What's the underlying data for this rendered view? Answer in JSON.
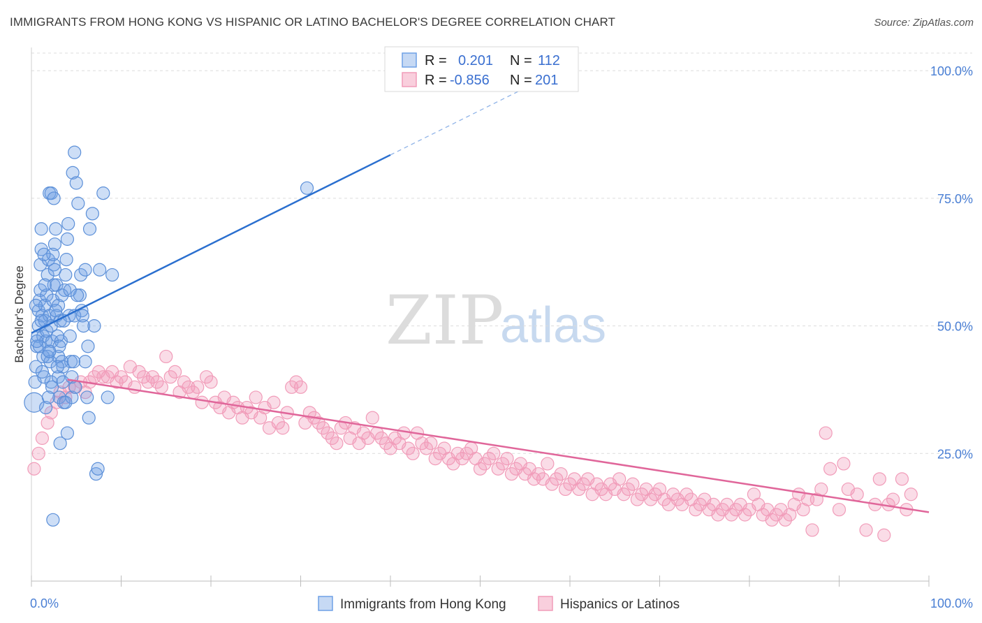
{
  "title": "IMMIGRANTS FROM HONG KONG VS HISPANIC OR LATINO BACHELOR'S DEGREE CORRELATION CHART",
  "source": "Source: ZipAtlas.com",
  "watermark": {
    "zip": "ZIP",
    "atlas": "atlas"
  },
  "colors": {
    "blue": "#6fa1e6",
    "blue_line": "#2a6fcf",
    "pink": "#f19cb9",
    "pink_line": "#e0669a",
    "grid": "#dcdcdc",
    "axis_text": "#4a7fd4"
  },
  "legend": {
    "rows": [
      {
        "r_label": "R =",
        "r_value": "0.201",
        "n_label": "N =",
        "n_value": "112"
      },
      {
        "r_label": "R =",
        "r_value": "-0.856",
        "n_label": "N =",
        "n_value": "201"
      }
    ]
  },
  "bottom_legend": [
    "Immigrants from Hong Kong",
    "Hispanics or Latinos"
  ],
  "chart_data": {
    "type": "scatter",
    "title": "IMMIGRANTS FROM HONG KONG VS HISPANIC OR LATINO BACHELOR'S DEGREE CORRELATION CHART",
    "xlabel": "",
    "ylabel": "Bachelor's Degree",
    "xlim": [
      0,
      100
    ],
    "ylim": [
      0,
      104
    ],
    "x_ticks": [
      "0.0%",
      "100.0%"
    ],
    "y_ticks": [
      {
        "value": 25,
        "label": "25.0%"
      },
      {
        "value": 50,
        "label": "50.0%"
      },
      {
        "value": 75,
        "label": "75.0%"
      },
      {
        "value": 100,
        "label": "100.0%"
      }
    ],
    "grid": true,
    "legend_position": "top-center",
    "series": [
      {
        "name": "Immigrants from Hong Kong",
        "color": "#6fa1e6",
        "trend": {
          "x0": 0,
          "y0": 48.6,
          "x1": 40,
          "y1": 83.5,
          "dash_to_x": 55,
          "dash_to_y": 96.6
        },
        "points": [
          [
            0.3,
            35
          ],
          [
            0.4,
            39
          ],
          [
            0.5,
            42
          ],
          [
            0.6,
            46
          ],
          [
            0.7,
            48
          ],
          [
            0.8,
            50
          ],
          [
            0.8,
            53
          ],
          [
            0.9,
            55
          ],
          [
            1.0,
            57
          ],
          [
            1.0,
            62
          ],
          [
            1.1,
            65
          ],
          [
            1.1,
            69
          ],
          [
            1.2,
            52
          ],
          [
            1.3,
            48
          ],
          [
            1.3,
            44
          ],
          [
            1.4,
            40
          ],
          [
            1.5,
            51
          ],
          [
            1.5,
            54
          ],
          [
            1.6,
            47
          ],
          [
            1.7,
            49
          ],
          [
            1.7,
            56
          ],
          [
            1.8,
            60
          ],
          [
            1.9,
            63
          ],
          [
            2.0,
            52
          ],
          [
            2.0,
            45
          ],
          [
            2.1,
            43
          ],
          [
            2.2,
            39
          ],
          [
            2.2,
            50
          ],
          [
            2.3,
            47
          ],
          [
            2.4,
            55
          ],
          [
            2.5,
            58
          ],
          [
            2.5,
            62
          ],
          [
            2.6,
            66
          ],
          [
            2.7,
            69
          ],
          [
            2.8,
            52
          ],
          [
            2.9,
            48
          ],
          [
            3.0,
            44
          ],
          [
            3.0,
            40
          ],
          [
            3.1,
            36
          ],
          [
            3.2,
            27
          ],
          [
            2.0,
            76
          ],
          [
            2.2,
            76
          ],
          [
            2.4,
            64
          ],
          [
            2.6,
            61
          ],
          [
            2.8,
            58
          ],
          [
            3.0,
            54
          ],
          [
            3.2,
            51
          ],
          [
            3.3,
            47
          ],
          [
            3.4,
            43
          ],
          [
            3.5,
            39
          ],
          [
            3.6,
            35
          ],
          [
            3.7,
            57
          ],
          [
            3.8,
            60
          ],
          [
            3.9,
            63
          ],
          [
            4.0,
            67
          ],
          [
            4.1,
            70
          ],
          [
            4.2,
            52
          ],
          [
            4.3,
            48
          ],
          [
            4.4,
            43
          ],
          [
            4.5,
            40
          ],
          [
            4.6,
            80
          ],
          [
            4.8,
            84
          ],
          [
            5.0,
            78
          ],
          [
            5.2,
            74
          ],
          [
            5.4,
            56
          ],
          [
            5.6,
            53
          ],
          [
            5.8,
            50
          ],
          [
            6.0,
            43
          ],
          [
            6.2,
            36
          ],
          [
            6.4,
            32
          ],
          [
            2.5,
            75
          ],
          [
            4.0,
            29
          ],
          [
            4.5,
            36
          ],
          [
            4.8,
            52
          ],
          [
            3.5,
            42
          ],
          [
            1.8,
            44
          ],
          [
            2.3,
            38
          ],
          [
            3.8,
            35
          ],
          [
            4.9,
            38
          ],
          [
            5.5,
            60
          ],
          [
            6.0,
            61
          ],
          [
            6.5,
            69
          ],
          [
            6.8,
            72
          ],
          [
            7.0,
            50
          ],
          [
            7.2,
            21
          ],
          [
            7.4,
            22
          ],
          [
            7.6,
            61
          ],
          [
            8.0,
            76
          ],
          [
            8.5,
            36
          ],
          [
            9.0,
            60
          ],
          [
            2.4,
            12
          ],
          [
            1.5,
            58
          ],
          [
            0.9,
            46
          ],
          [
            1.2,
            41
          ],
          [
            2.7,
            53
          ],
          [
            3.1,
            46
          ],
          [
            1.6,
            34
          ],
          [
            0.6,
            47
          ],
          [
            1.1,
            51
          ],
          [
            2.0,
            45
          ],
          [
            3.4,
            56
          ],
          [
            4.3,
            57
          ],
          [
            5.1,
            56
          ],
          [
            5.7,
            52
          ],
          [
            6.3,
            46
          ],
          [
            2.9,
            42
          ],
          [
            1.9,
            36
          ],
          [
            3.6,
            51
          ],
          [
            4.7,
            43
          ],
          [
            0.5,
            54
          ],
          [
            30.7,
            77
          ],
          [
            1.4,
            64
          ]
        ]
      },
      {
        "name": "Hispanics or Latinos",
        "color": "#f19cb9",
        "trend": {
          "x0": 4,
          "y0": 39.5,
          "x1": 100,
          "y1": 13.5
        },
        "points": [
          [
            0.3,
            22
          ],
          [
            0.8,
            25
          ],
          [
            1.2,
            28
          ],
          [
            1.8,
            31
          ],
          [
            2.2,
            33
          ],
          [
            2.8,
            35
          ],
          [
            3.2,
            37
          ],
          [
            3.8,
            36
          ],
          [
            4.2,
            38
          ],
          [
            4.8,
            38
          ],
          [
            5.5,
            39
          ],
          [
            6,
            37
          ],
          [
            6.5,
            39
          ],
          [
            7,
            40
          ],
          [
            7.5,
            41
          ],
          [
            8,
            40
          ],
          [
            8.5,
            40
          ],
          [
            9,
            41
          ],
          [
            9.5,
            39
          ],
          [
            10,
            40
          ],
          [
            10.5,
            39
          ],
          [
            11,
            42
          ],
          [
            11.5,
            38
          ],
          [
            12,
            41
          ],
          [
            12.5,
            40
          ],
          [
            13,
            39
          ],
          [
            13.5,
            40
          ],
          [
            14,
            39
          ],
          [
            14.5,
            38
          ],
          [
            15,
            44
          ],
          [
            15.5,
            40
          ],
          [
            16,
            41
          ],
          [
            16.5,
            37
          ],
          [
            17,
            39
          ],
          [
            17.5,
            38
          ],
          [
            18,
            37
          ],
          [
            18.5,
            38
          ],
          [
            19,
            35
          ],
          [
            19.5,
            40
          ],
          [
            20,
            39
          ],
          [
            20.5,
            35
          ],
          [
            21,
            34
          ],
          [
            21.5,
            36
          ],
          [
            22,
            33
          ],
          [
            22.5,
            35
          ],
          [
            23,
            34
          ],
          [
            23.5,
            32
          ],
          [
            24,
            34
          ],
          [
            24.5,
            33
          ],
          [
            25,
            36
          ],
          [
            25.5,
            32
          ],
          [
            26,
            34
          ],
          [
            26.5,
            30
          ],
          [
            27,
            35
          ],
          [
            27.5,
            31
          ],
          [
            28,
            30
          ],
          [
            28.5,
            33
          ],
          [
            29,
            38
          ],
          [
            29.5,
            39
          ],
          [
            30,
            38
          ],
          [
            30.5,
            31
          ],
          [
            31,
            33
          ],
          [
            31.5,
            32
          ],
          [
            32,
            31
          ],
          [
            32.5,
            30
          ],
          [
            33,
            29
          ],
          [
            33.5,
            28
          ],
          [
            34,
            27
          ],
          [
            34.5,
            30
          ],
          [
            35,
            31
          ],
          [
            35.5,
            28
          ],
          [
            36,
            30
          ],
          [
            36.5,
            27
          ],
          [
            37,
            29
          ],
          [
            37.5,
            28
          ],
          [
            38,
            32
          ],
          [
            38.5,
            29
          ],
          [
            39,
            28
          ],
          [
            39.5,
            27
          ],
          [
            40,
            26
          ],
          [
            40.5,
            28
          ],
          [
            41,
            27
          ],
          [
            41.5,
            29
          ],
          [
            42,
            26
          ],
          [
            42.5,
            25
          ],
          [
            43,
            29
          ],
          [
            43.5,
            27
          ],
          [
            44,
            26
          ],
          [
            44.5,
            27
          ],
          [
            45,
            24
          ],
          [
            45.5,
            25
          ],
          [
            46,
            26
          ],
          [
            46.5,
            24
          ],
          [
            47,
            23
          ],
          [
            47.5,
            25
          ],
          [
            48,
            24
          ],
          [
            48.5,
            25
          ],
          [
            49,
            26
          ],
          [
            49.5,
            24
          ],
          [
            50,
            22
          ],
          [
            50.5,
            23
          ],
          [
            51,
            24
          ],
          [
            51.5,
            25
          ],
          [
            52,
            22
          ],
          [
            52.5,
            23
          ],
          [
            53,
            24
          ],
          [
            53.5,
            21
          ],
          [
            54,
            22
          ],
          [
            54.5,
            23
          ],
          [
            55,
            21
          ],
          [
            55.5,
            22
          ],
          [
            56,
            20
          ],
          [
            56.5,
            21
          ],
          [
            57,
            20
          ],
          [
            57.5,
            23
          ],
          [
            58,
            19
          ],
          [
            58.5,
            20
          ],
          [
            59,
            21
          ],
          [
            59.5,
            18
          ],
          [
            60,
            19
          ],
          [
            60.5,
            20
          ],
          [
            61,
            18
          ],
          [
            61.5,
            19
          ],
          [
            62,
            20
          ],
          [
            62.5,
            17
          ],
          [
            63,
            19
          ],
          [
            63.5,
            18
          ],
          [
            64,
            17
          ],
          [
            64.5,
            19
          ],
          [
            65,
            18
          ],
          [
            65.5,
            20
          ],
          [
            66,
            17
          ],
          [
            66.5,
            18
          ],
          [
            67,
            19
          ],
          [
            67.5,
            16
          ],
          [
            68,
            17
          ],
          [
            68.5,
            18
          ],
          [
            69,
            16
          ],
          [
            69.5,
            17
          ],
          [
            70,
            18
          ],
          [
            70.5,
            16
          ],
          [
            71,
            15
          ],
          [
            71.5,
            17
          ],
          [
            72,
            16
          ],
          [
            72.5,
            15
          ],
          [
            73,
            17
          ],
          [
            73.5,
            16
          ],
          [
            74,
            14
          ],
          [
            74.5,
            15
          ],
          [
            75,
            16
          ],
          [
            75.5,
            14
          ],
          [
            76,
            15
          ],
          [
            76.5,
            13
          ],
          [
            77,
            14
          ],
          [
            77.5,
            15
          ],
          [
            78,
            13
          ],
          [
            78.5,
            14
          ],
          [
            79,
            15
          ],
          [
            79.5,
            13
          ],
          [
            80,
            14
          ],
          [
            80.5,
            17
          ],
          [
            81,
            15
          ],
          [
            81.5,
            13
          ],
          [
            82,
            14
          ],
          [
            82.5,
            12
          ],
          [
            83,
            13
          ],
          [
            83.5,
            14
          ],
          [
            84,
            12
          ],
          [
            84.5,
            13
          ],
          [
            85,
            15
          ],
          [
            85.5,
            17
          ],
          [
            86,
            14
          ],
          [
            86.5,
            16
          ],
          [
            87,
            10
          ],
          [
            87.5,
            16
          ],
          [
            88,
            18
          ],
          [
            88.5,
            29
          ],
          [
            89,
            22
          ],
          [
            90,
            14
          ],
          [
            90.5,
            23
          ],
          [
            91,
            18
          ],
          [
            92,
            17
          ],
          [
            93,
            10
          ],
          [
            94,
            15
          ],
          [
            94.5,
            20
          ],
          [
            95,
            9
          ],
          [
            95.5,
            15
          ],
          [
            96,
            16
          ],
          [
            97,
            20
          ],
          [
            97.5,
            14
          ],
          [
            98,
            17
          ]
        ]
      }
    ]
  }
}
